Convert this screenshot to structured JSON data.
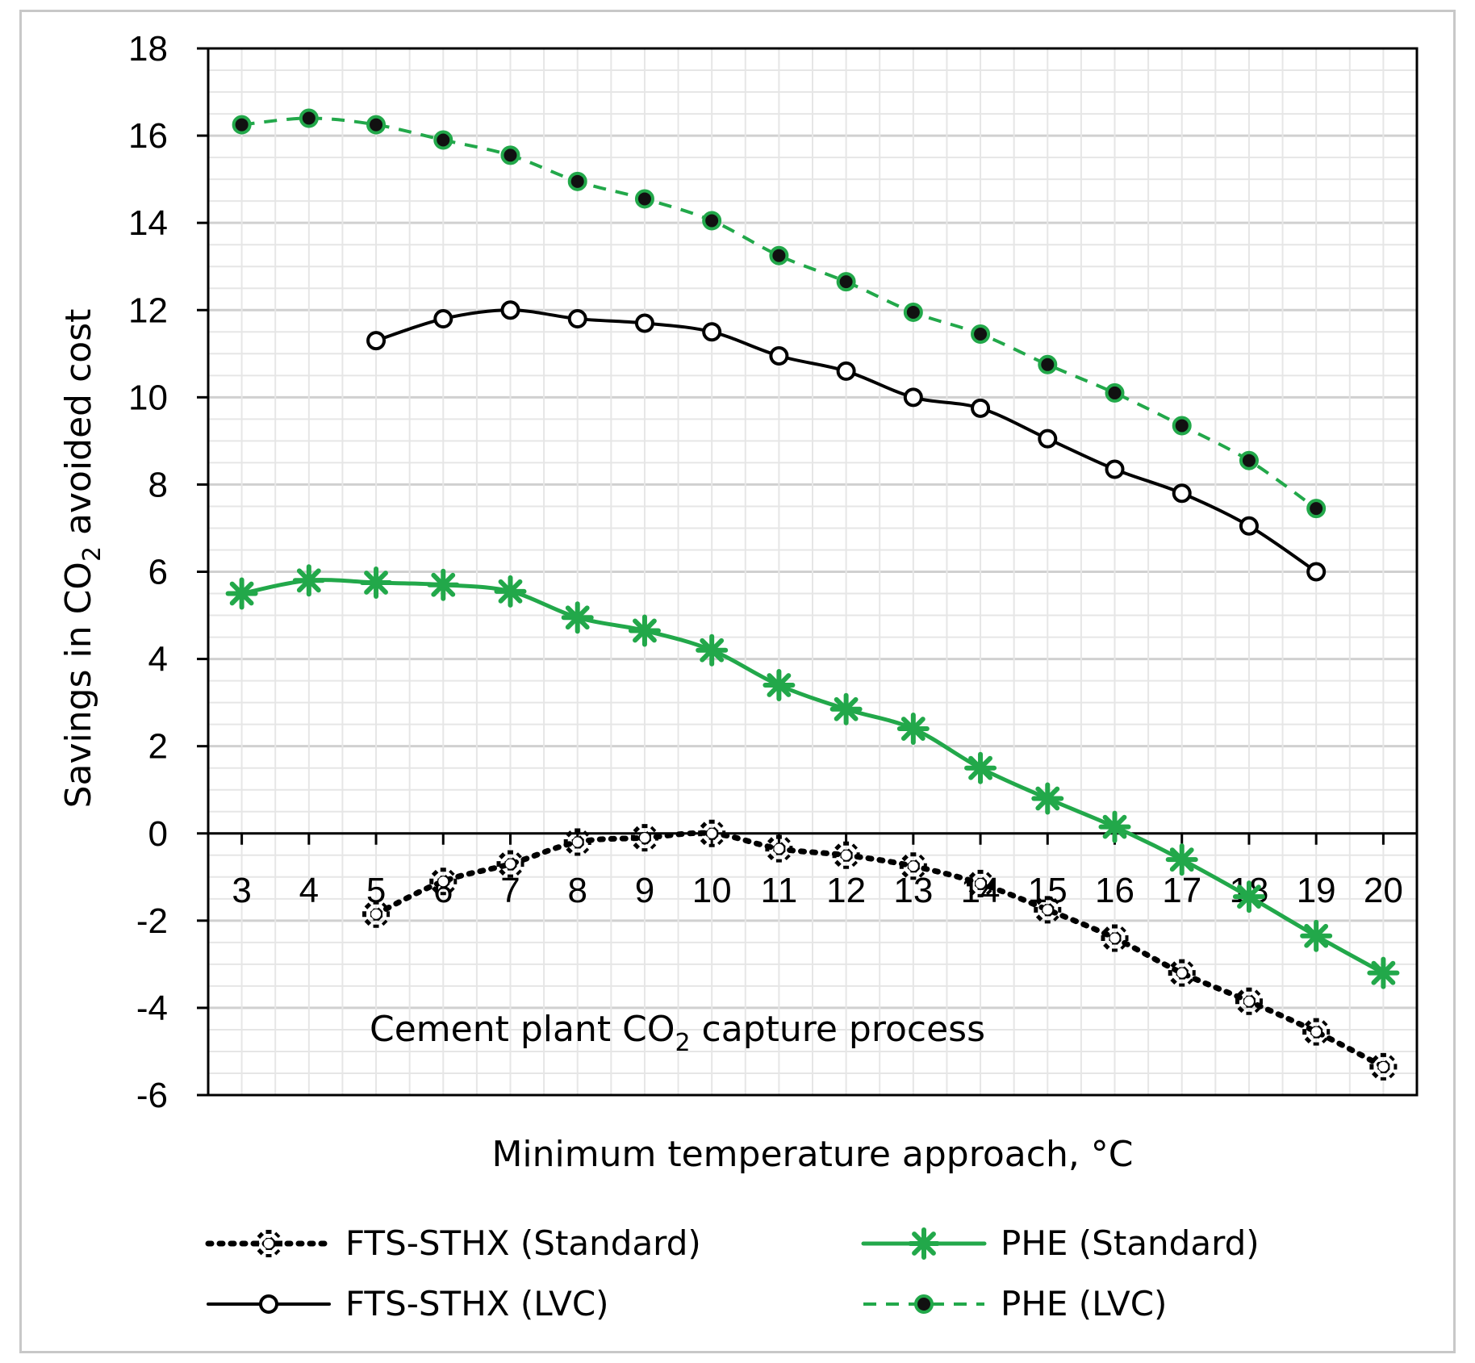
{
  "chart_data": {
    "type": "line",
    "title": "",
    "annotation": {
      "text_main": "Cement plant CO",
      "sub": "2",
      "text_tail": " capture process"
    },
    "xlabel": "Minimum temperature approach, °C",
    "ylabel": {
      "pre": "Savings in CO",
      "sub": "2",
      "post": " avoided cost"
    },
    "x": [
      3,
      4,
      5,
      6,
      7,
      8,
      9,
      10,
      11,
      12,
      13,
      14,
      15,
      16,
      17,
      18,
      19,
      20
    ],
    "xlim": [
      2.5,
      20.5
    ],
    "ylim": [
      -6,
      18
    ],
    "yticks": [
      -6,
      -4,
      -2,
      0,
      2,
      4,
      6,
      8,
      10,
      12,
      14,
      16,
      18
    ],
    "grid": true,
    "series": [
      {
        "name": "FTS-STHX (Standard)",
        "style": "dotted-star",
        "color": "#000000",
        "x": [
          5,
          6,
          7,
          8,
          9,
          10,
          11,
          12,
          13,
          14,
          15,
          16,
          17,
          18,
          19,
          20
        ],
        "values": [
          -1.85,
          -1.1,
          -0.7,
          -0.2,
          -0.1,
          0.0,
          -0.35,
          -0.5,
          -0.75,
          -1.15,
          -1.75,
          -2.4,
          -3.2,
          -3.85,
          -4.55,
          -5.35
        ]
      },
      {
        "name": "FTS-STHX (LVC)",
        "style": "solid-circle",
        "color": "#000000",
        "x": [
          5,
          6,
          7,
          8,
          9,
          10,
          11,
          12,
          13,
          14,
          15,
          16,
          17,
          18,
          19
        ],
        "values": [
          11.3,
          11.8,
          12.0,
          11.8,
          11.7,
          11.5,
          10.95,
          10.6,
          10.0,
          9.75,
          9.05,
          8.35,
          7.8,
          7.05,
          6.0
        ]
      },
      {
        "name": "PHE (Standard)",
        "style": "solid-asterisk",
        "color": "#22a84a",
        "x": [
          3,
          4,
          5,
          6,
          7,
          8,
          9,
          10,
          11,
          12,
          13,
          14,
          15,
          16,
          17,
          18,
          19,
          20
        ],
        "values": [
          5.5,
          5.8,
          5.75,
          5.7,
          5.55,
          4.95,
          4.65,
          4.2,
          3.4,
          2.85,
          2.4,
          1.5,
          0.8,
          0.15,
          -0.6,
          -1.45,
          -2.35,
          -3.2
        ]
      },
      {
        "name": "PHE (LVC)",
        "style": "dashed-dot",
        "color": "#22a84a",
        "x": [
          3,
          4,
          5,
          6,
          7,
          8,
          9,
          10,
          11,
          12,
          13,
          14,
          15,
          16,
          17,
          18,
          19
        ],
        "values": [
          16.25,
          16.4,
          16.25,
          15.9,
          15.55,
          14.95,
          14.55,
          14.05,
          13.25,
          12.65,
          11.95,
          11.45,
          10.75,
          10.1,
          9.35,
          8.55,
          7.45
        ]
      }
    ],
    "legend_position": "bottom"
  }
}
